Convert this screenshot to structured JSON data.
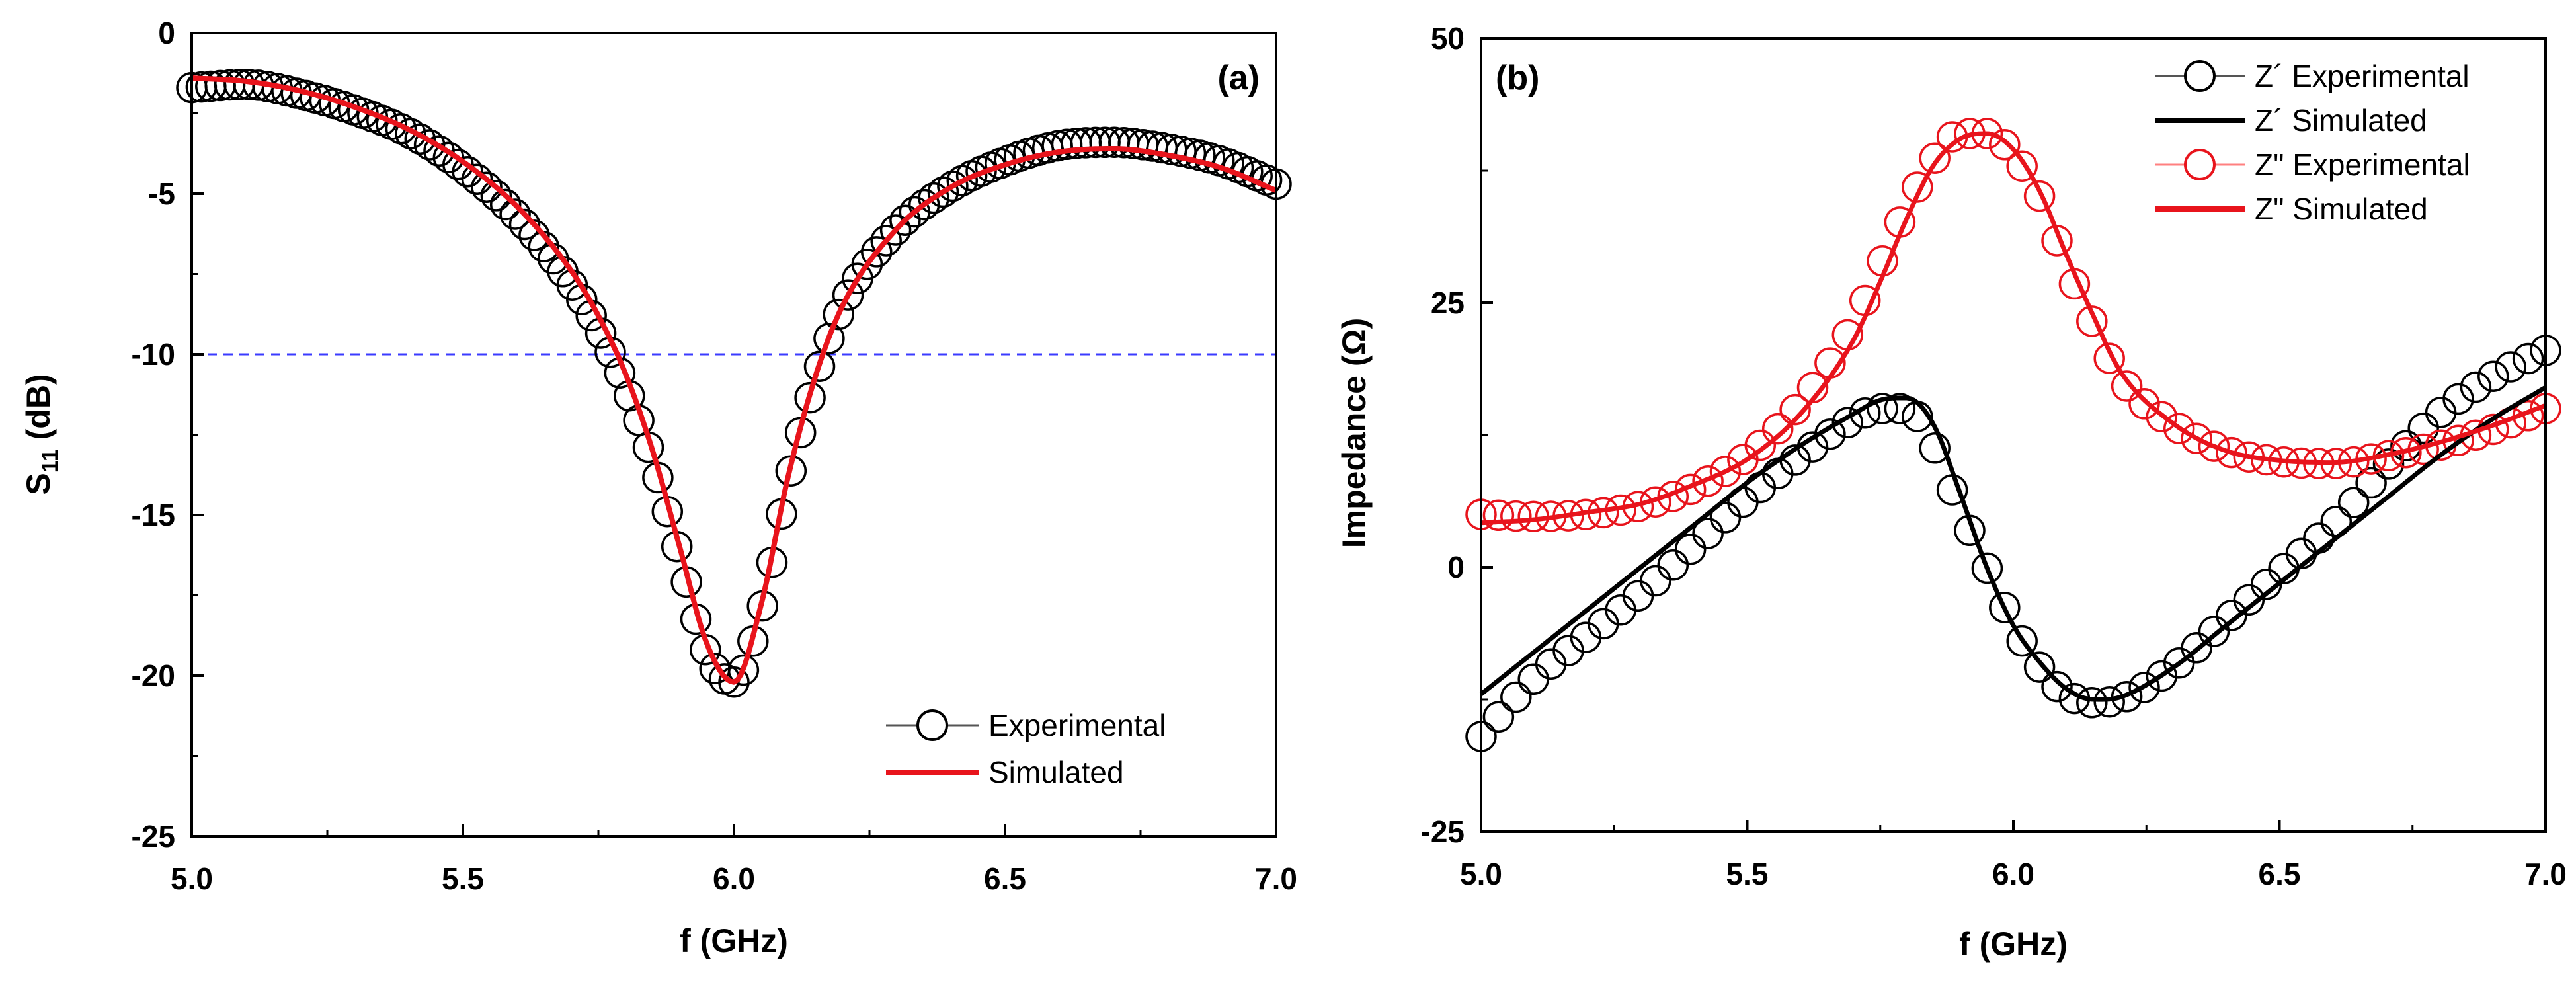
{
  "chart_data": [
    {
      "type": "line",
      "panel_label": "(a)",
      "xlabel": "f (GHz)",
      "ylabel": {
        "prefix": "S",
        "subscript": "11",
        "suffix": " (dB)"
      },
      "xlim": [
        5.0,
        7.0
      ],
      "ylim": [
        -25,
        0
      ],
      "xticks": [
        "5.0",
        "5.5",
        "6.0",
        "6.5",
        "7.0"
      ],
      "yticks": [
        "0",
        "-5",
        "-10",
        "-15",
        "-20",
        "-25"
      ],
      "reference_line": {
        "y": -10,
        "color": "#3b3bff",
        "style": "dashed"
      },
      "legend_position": "lower-right",
      "x": [
        5.0,
        5.1,
        5.2,
        5.3,
        5.4,
        5.5,
        5.6,
        5.7,
        5.75,
        5.8,
        5.85,
        5.9,
        5.95,
        6.0,
        6.05,
        6.1,
        6.15,
        6.2,
        6.3,
        6.4,
        6.5,
        6.6,
        6.7,
        6.8,
        6.9,
        7.0
      ],
      "series": [
        {
          "name": "Experimental",
          "style": "open-circle",
          "color": "#000000",
          "values": [
            -1.7,
            -1.6,
            -1.9,
            -2.4,
            -3.1,
            -4.2,
            -5.7,
            -7.8,
            -9.2,
            -11.0,
            -13.3,
            -16.3,
            -19.3,
            -20.2,
            -18.0,
            -14.0,
            -10.8,
            -8.5,
            -6.1,
            -4.8,
            -4.0,
            -3.5,
            -3.4,
            -3.6,
            -4.0,
            -4.7
          ]
        },
        {
          "name": "Simulated",
          "style": "line",
          "color": "#e8141c",
          "values": [
            -1.4,
            -1.5,
            -1.8,
            -2.3,
            -3.0,
            -4.0,
            -5.4,
            -7.4,
            -8.8,
            -10.6,
            -13.0,
            -16.0,
            -19.0,
            -20.2,
            -17.8,
            -13.8,
            -10.7,
            -8.5,
            -6.1,
            -4.8,
            -4.1,
            -3.7,
            -3.6,
            -3.8,
            -4.2,
            -4.9
          ]
        }
      ]
    },
    {
      "type": "line",
      "panel_label": "(b)",
      "xlabel": "f (GHz)",
      "ylabel": {
        "prefix": "Impedance (Ω)",
        "subscript": "",
        "suffix": ""
      },
      "xlim": [
        5.0,
        7.0
      ],
      "ylim": [
        -25,
        50
      ],
      "xticks": [
        "5.0",
        "5.5",
        "6.0",
        "6.5",
        "7.0"
      ],
      "yticks": [
        "50",
        "25",
        "0",
        "-25"
      ],
      "legend_position": "top-right",
      "x": [
        5.0,
        5.1,
        5.2,
        5.3,
        5.4,
        5.5,
        5.6,
        5.7,
        5.75,
        5.8,
        5.85,
        5.9,
        5.95,
        6.0,
        6.05,
        6.1,
        6.15,
        6.2,
        6.3,
        6.4,
        6.5,
        6.6,
        6.7,
        6.8,
        6.9,
        7.0
      ],
      "series": [
        {
          "name": "Z´ Experimental",
          "style": "open-circle",
          "color": "#000000",
          "values": [
            -16,
            -10.5,
            -6.5,
            -2.5,
            2.0,
            6.5,
            10.5,
            14.0,
            15.0,
            15.0,
            11.5,
            5.5,
            0.0,
            -5.5,
            -9.5,
            -12.0,
            -12.8,
            -12.5,
            -9.5,
            -5.0,
            -0.5,
            4.0,
            9.5,
            14.5,
            18.0,
            20.5
          ]
        },
        {
          "name": "Z´ Simulated",
          "style": "line",
          "color": "#000000",
          "values": [
            -12,
            -8,
            -4,
            0.0,
            4.0,
            8.0,
            11.5,
            14.5,
            15.8,
            16.0,
            13.5,
            7.0,
            0.0,
            -5.5,
            -9.0,
            -11.5,
            -12.5,
            -12.3,
            -9.5,
            -5.5,
            -1.5,
            2.5,
            6.5,
            10.5,
            14.0,
            17.0
          ]
        },
        {
          "name": "Z\" Experimental",
          "style": "open-circle",
          "color": "#e8141c",
          "values": [
            5.0,
            4.8,
            5.0,
            5.8,
            7.5,
            10.5,
            15.5,
            23.0,
            28.5,
            34.0,
            38.5,
            41.0,
            41.0,
            39.0,
            35.0,
            28.5,
            23.0,
            18.0,
            13.5,
            11.0,
            10.0,
            9.8,
            10.5,
            11.5,
            13.0,
            15.0
          ]
        },
        {
          "name": "Z\" Simulated",
          "style": "line",
          "color": "#e8141c",
          "values": [
            4.2,
            4.5,
            5.2,
            6.0,
            7.8,
            10.2,
            14.5,
            21.5,
            27.0,
            33.0,
            38.0,
            40.5,
            41.0,
            39.5,
            35.5,
            29.5,
            23.8,
            18.6,
            13.6,
            11.0,
            10.1,
            9.9,
            10.6,
            11.8,
            13.4,
            15.3
          ]
        }
      ]
    }
  ]
}
